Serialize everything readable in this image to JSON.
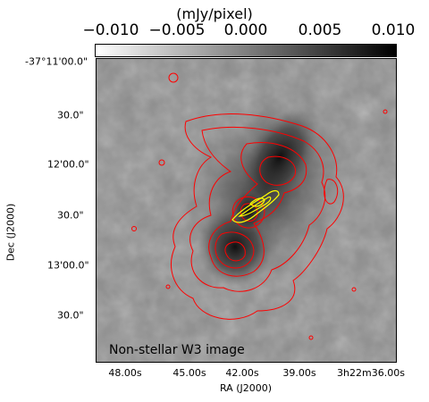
{
  "colorbar": {
    "title": "(mJy/pixel)",
    "ticks": [
      "−0.010",
      "−0.005",
      "0.000",
      "0.005",
      "0.010"
    ],
    "range": [
      -0.01,
      0.01
    ]
  },
  "axes": {
    "xlabel": "RA (J2000)",
    "ylabel": "Dec (J2000)",
    "xticks": [
      "48.00s",
      "45.00s",
      "42.00s",
      "39.00s",
      "3h22m36.00s"
    ],
    "yticks": [
      "-37°11'00.0\"",
      "30.0\"",
      "12'00.0\"",
      "30.0\"",
      "13'00.0\"",
      "30.0\""
    ]
  },
  "panel_label": "Non-stellar W3 image",
  "colors": {
    "contour_outer": "#ff0000",
    "contour_inner": "#ffff00",
    "background_gray": "#8a8a8a"
  }
}
